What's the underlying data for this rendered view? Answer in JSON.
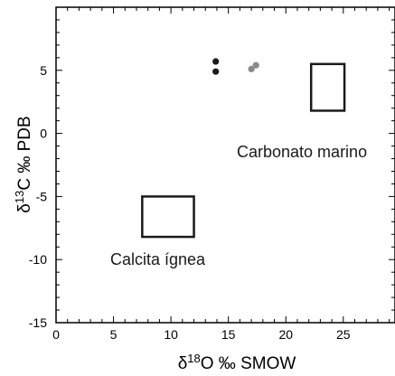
{
  "chart_data": {
    "type": "scatter",
    "xlabel": {
      "prefix": "δ",
      "sup": "18",
      "rest": "O ‰ SMOW"
    },
    "ylabel": {
      "prefix": "δ",
      "sup": "13",
      "rest": "C ‰ PDB"
    },
    "xlim": [
      0,
      29.5
    ],
    "ylim": [
      -15,
      10
    ],
    "x_ticks": [
      0,
      5,
      10,
      15,
      20,
      25
    ],
    "x_tick_labels": [
      "0",
      "5",
      "10",
      "15",
      "20",
      "25"
    ],
    "y_ticks": [
      5,
      0,
      -5,
      -10,
      -15
    ],
    "y_tick_labels": [
      "5",
      "0",
      "-5",
      "-10",
      "-15"
    ],
    "grid": false,
    "series": [
      {
        "color": "#1a1a1a",
        "points": [
          {
            "x": 13.9,
            "y": 5.7
          },
          {
            "x": 13.9,
            "y": 4.9
          }
        ]
      },
      {
        "color": "#8a8a8a",
        "points": [
          {
            "x": 17.0,
            "y": 5.1
          },
          {
            "x": 17.4,
            "y": 5.4
          }
        ]
      }
    ],
    "regions": [
      {
        "label": "Carbonato marino",
        "x": [
          22.2,
          25.1
        ],
        "y": [
          1.8,
          5.5
        ]
      },
      {
        "label": "Calcita ígnea",
        "x": [
          7.5,
          12.0
        ],
        "y": [
          -8.2,
          -5.0
        ]
      }
    ]
  }
}
